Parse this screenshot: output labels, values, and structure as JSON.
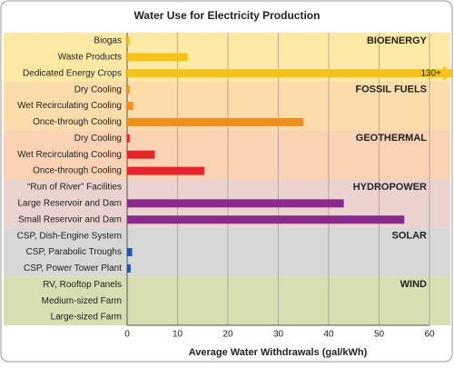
{
  "chart_data": {
    "type": "grouped-bar",
    "title": "Water Use for Electricity Production",
    "x_label": "Average Water Withdrawals (gal/kWh)",
    "xlim": [
      0,
      60
    ],
    "xticks": [
      0,
      10,
      20,
      30,
      40,
      50,
      60
    ],
    "grid": true,
    "series": [
      {
        "name": "BIOENERGY",
        "color": "#f5c21b",
        "background": "#fde9a3",
        "categories": [
          "Biogas",
          "Waste Products",
          "Dedicated Energy Crops"
        ],
        "values": [
          0.5,
          12,
          130
        ],
        "value_labels": [
          null,
          null,
          "130+"
        ]
      },
      {
        "name": "FOSSIL FUELS",
        "color": "#f08f1e",
        "background": "#fcdcaa",
        "categories": [
          "Dry Cooling",
          "Wet Recirculating Cooling",
          "Once-through Cooling"
        ],
        "values": [
          0.5,
          1.2,
          35
        ]
      },
      {
        "name": "GEOTHERMAL",
        "color": "#e5252a",
        "background": "#fbd3b4",
        "categories": [
          "Dry Cooling",
          "Wet Recirculating Cooling",
          "Once-through Cooling"
        ],
        "values": [
          0.5,
          5.5,
          15.3
        ]
      },
      {
        "name": "HYDROPOWER",
        "color": "#8a2a8c",
        "background": "#ead2cf",
        "categories": [
          "“Run of River” Facilities",
          "Large Reservoir and Dam",
          "Small Reservoir and Dam"
        ],
        "values": [
          0,
          43,
          55
        ]
      },
      {
        "name": "SOLAR",
        "color": "#1e5aa8",
        "background": "#d7d7d7",
        "categories": [
          "CSP, Dish-Engine System",
          "CSP, Parabolic Troughs",
          "CSP, Power Tower Plant"
        ],
        "values": [
          0,
          1,
          0.7
        ]
      },
      {
        "name": "WIND",
        "color": "#5a7a2a",
        "background": "#d8ddb2",
        "categories": [
          "RV, Rooftop Panels",
          "Medium-sized Farm",
          "Large-sized Farm"
        ],
        "values": [
          0,
          0,
          0
        ]
      }
    ]
  }
}
